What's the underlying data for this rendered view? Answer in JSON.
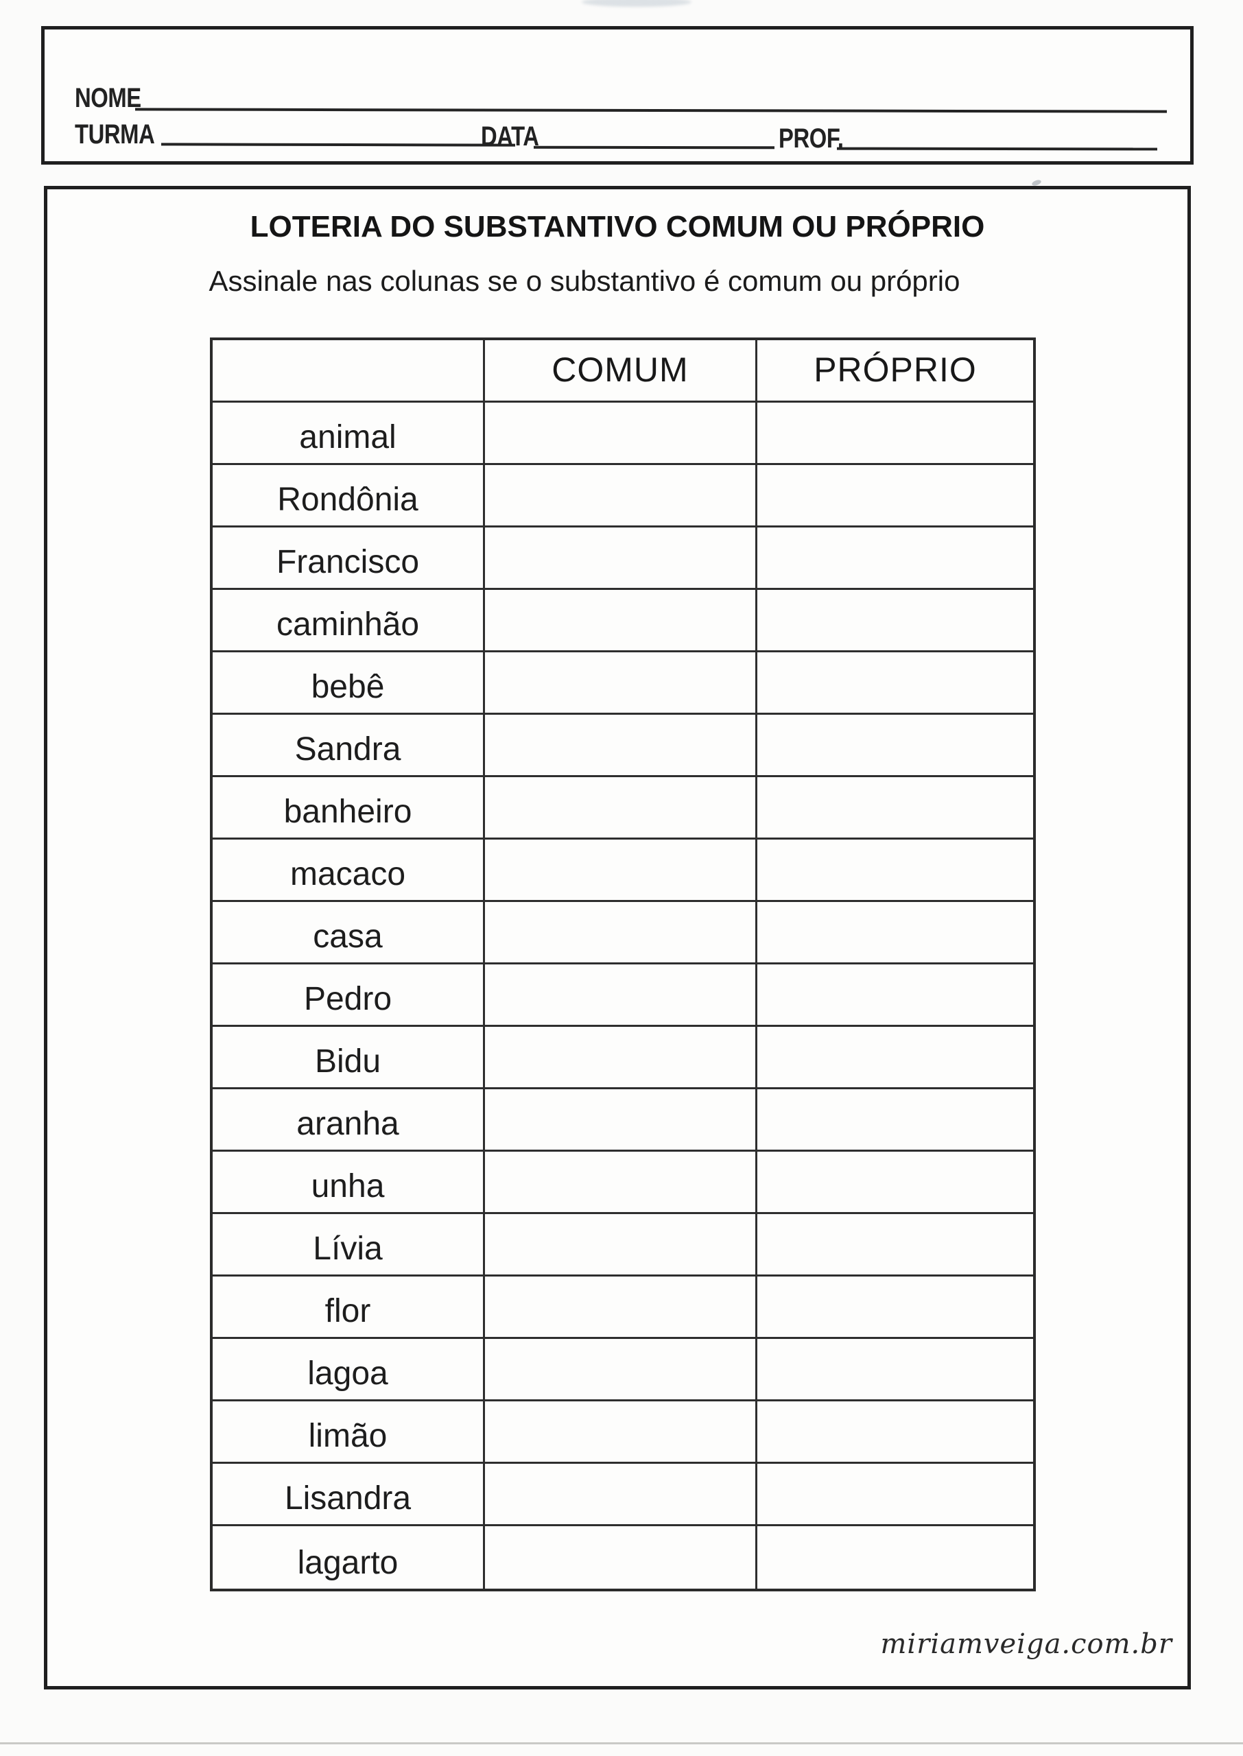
{
  "student_info": {
    "name_label": "NOME",
    "class_label": "TURMA",
    "date_label": "DATA",
    "teacher_label": "PROF."
  },
  "worksheet": {
    "title": "LOTERIA DO SUBSTANTIVO COMUM OU PRÓPRIO",
    "instruction": "Assinale nas colunas se o substantivo é comum ou próprio",
    "table": {
      "columns": {
        "word": "",
        "comum": "COMUM",
        "proprio": "PRÓPRIO"
      },
      "rows": [
        "animal",
        "Rondônia",
        "Francisco",
        "caminhão",
        "bebê",
        "Sandra",
        "banheiro",
        "macaco",
        "casa",
        "Pedro",
        "Bidu",
        "aranha",
        "unha",
        "Lívia",
        "flor",
        "lagoa",
        "limão",
        "Lisandra",
        "lagarto"
      ]
    }
  },
  "footer": {
    "watermark": "miriamveiga.com.br"
  },
  "colors": {
    "ink": "#1f1f1f",
    "table_line": "#2e2e2e",
    "paper": "#fdfdfc",
    "page_background": "#fbfbfa"
  }
}
